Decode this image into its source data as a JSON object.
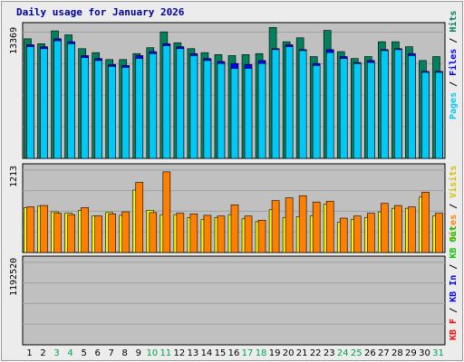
{
  "chart_data": [
    {
      "type": "bar",
      "title": "Daily usage for January 2026",
      "panel": "top",
      "y_label_value": "13369",
      "ylim": [
        0,
        13369
      ],
      "categories": [
        "1",
        "2",
        "3",
        "4",
        "5",
        "6",
        "7",
        "8",
        "9",
        "10",
        "11",
        "12",
        "13",
        "14",
        "15",
        "16",
        "17",
        "18",
        "19",
        "20",
        "21",
        "22",
        "23",
        "24",
        "25",
        "26",
        "27",
        "28",
        "29",
        "30",
        "31"
      ],
      "weekend_days": [
        "3",
        "4",
        "10",
        "11",
        "17",
        "18",
        "24",
        "25",
        "31"
      ],
      "series": [
        {
          "name": "Hits",
          "color": "#00805c",
          "values": [
            12100,
            11600,
            12900,
            12500,
            11100,
            10700,
            10000,
            10000,
            10600,
            11200,
            12800,
            11700,
            11100,
            10700,
            10500,
            10400,
            10500,
            10600,
            13250,
            11800,
            12200,
            10300,
            12950,
            10800,
            10100,
            10300,
            11800,
            11800,
            11300,
            9900,
            10300
          ]
        },
        {
          "name": "Files",
          "color": "#0000ff",
          "values": [
            11500,
            11300,
            12100,
            11800,
            10400,
            10100,
            9500,
            9400,
            10400,
            10800,
            11600,
            11300,
            10600,
            10100,
            9800,
            9600,
            9500,
            9900,
            11100,
            11500,
            11000,
            9600,
            11000,
            10300,
            9700,
            9900,
            11000,
            11100,
            10600,
            8800,
            8800
          ]
        },
        {
          "name": "Pages",
          "color": "#00c8f8",
          "values": [
            11300,
            11100,
            11900,
            11600,
            10200,
            9900,
            9300,
            9200,
            10100,
            10600,
            11400,
            11100,
            10400,
            9900,
            9600,
            9100,
            9100,
            9600,
            11000,
            11300,
            10900,
            9400,
            10700,
            10100,
            9600,
            9700,
            10900,
            11000,
            10400,
            8700,
            8700
          ]
        }
      ]
    },
    {
      "type": "bar",
      "panel": "middle",
      "y_label_value": "1213",
      "ylim": [
        0,
        1213
      ],
      "categories": [
        "1",
        "2",
        "3",
        "4",
        "5",
        "6",
        "7",
        "8",
        "9",
        "10",
        "11",
        "12",
        "13",
        "14",
        "15",
        "16",
        "17",
        "18",
        "19",
        "20",
        "21",
        "22",
        "23",
        "24",
        "25",
        "26",
        "27",
        "28",
        "29",
        "30",
        "31"
      ],
      "series": [
        {
          "name": "Visits",
          "color": "#f8f800",
          "values": [
            640,
            660,
            580,
            560,
            600,
            520,
            570,
            530,
            890,
            600,
            540,
            540,
            500,
            470,
            500,
            540,
            480,
            440,
            610,
            500,
            510,
            520,
            690,
            430,
            470,
            500,
            580,
            630,
            630,
            790,
            520
          ]
        },
        {
          "name": "Sites",
          "color": "#ff8000",
          "values": [
            650,
            670,
            560,
            540,
            640,
            520,
            550,
            580,
            1000,
            570,
            1150,
            560,
            550,
            530,
            520,
            680,
            520,
            460,
            740,
            780,
            810,
            720,
            730,
            490,
            520,
            560,
            700,
            670,
            650,
            860,
            560
          ]
        }
      ]
    },
    {
      "type": "bar",
      "panel": "bottom",
      "y_label_value": "1192520",
      "ylim": [
        0,
        1192520
      ],
      "categories": [
        "1",
        "2",
        "3",
        "4",
        "5",
        "6",
        "7",
        "8",
        "9",
        "10",
        "11",
        "12",
        "13",
        "14",
        "15",
        "16",
        "17",
        "18",
        "19",
        "20",
        "21",
        "22",
        "23",
        "24",
        "25",
        "26",
        "27",
        "28",
        "29",
        "30",
        "31"
      ],
      "series": [
        {
          "name": "KB F",
          "color": "#ff0000",
          "values": [
            770,
            1000,
            1150,
            720,
            720,
            720,
            720,
            1000,
            1000,
            1000,
            1000,
            1000,
            850,
            870,
            980,
            690,
            780,
            1020,
            1250,
            1050,
            1250,
            720,
            1040,
            780,
            780,
            800,
            1060,
            1040,
            1040,
            1040,
            620
          ]
        },
        {
          "name": "KB In",
          "color": "#0000ff",
          "values": [
            0,
            0,
            0,
            0,
            0,
            0,
            0,
            0,
            0,
            0,
            0,
            0,
            0,
            0,
            0,
            0,
            0,
            0,
            0,
            0,
            0,
            0,
            0,
            0,
            0,
            0,
            0,
            0,
            0,
            0,
            0
          ]
        },
        {
          "name": "KB Out",
          "color": "#00cc00",
          "values": [
            770,
            1000,
            1150,
            720,
            720,
            720,
            720,
            1000,
            1000,
            1000,
            1000,
            1000,
            850,
            870,
            980,
            690,
            780,
            1020,
            1250,
            1050,
            1250,
            720,
            1040,
            780,
            780,
            800,
            1060,
            1040,
            1040,
            1040,
            620
          ]
        }
      ]
    }
  ]
}
